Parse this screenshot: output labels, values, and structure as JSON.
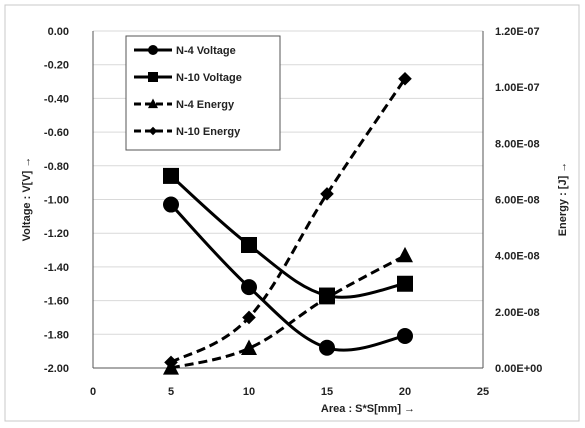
{
  "chart_data": {
    "type": "line",
    "x_axis": {
      "label": "Area : S*S[mm]  →",
      "min": 0,
      "max": 25,
      "ticks": [
        "0",
        "5",
        "10",
        "15",
        "20",
        "25"
      ]
    },
    "y_left": {
      "label": "Voltage : V[V] →",
      "min": -2.0,
      "max": 0.0,
      "ticks": [
        "0.00",
        "-0.20",
        "-0.40",
        "-0.60",
        "-0.80",
        "-1.00",
        "-1.20",
        "-1.40",
        "-1.60",
        "-1.80",
        "-2.00"
      ]
    },
    "y_right": {
      "label": "Energy : [J] →",
      "min": 0,
      "max": 1.2e-07,
      "ticks": [
        "1.20E-07",
        "1.00E-07",
        "8.00E-08",
        "6.00E-08",
        "4.00E-08",
        "2.00E-08",
        "0.00E+00"
      ]
    },
    "x": [
      5,
      10,
      15,
      20
    ],
    "series": [
      {
        "name": "N-4 Voltage",
        "axis": "left",
        "marker": "circle",
        "line": "solid",
        "values": [
          -1.03,
          -1.52,
          -1.88,
          -1.81
        ]
      },
      {
        "name": "N-10 Voltage",
        "axis": "left",
        "marker": "square",
        "line": "solid",
        "values": [
          -0.86,
          -1.27,
          -1.57,
          -1.5
        ]
      },
      {
        "name": "N-4 Energy",
        "axis": "right",
        "marker": "triangle",
        "line": "dashed",
        "values": [
          0.0,
          7e-09,
          2.5e-08,
          4e-08
        ]
      },
      {
        "name": "N-10 Energy",
        "axis": "right",
        "marker": "diamond",
        "line": "dashed",
        "values": [
          2e-09,
          1.8e-08,
          6.2e-08,
          1.03e-07
        ]
      }
    ],
    "grid": "horizontal",
    "legend_position": "top-left"
  }
}
